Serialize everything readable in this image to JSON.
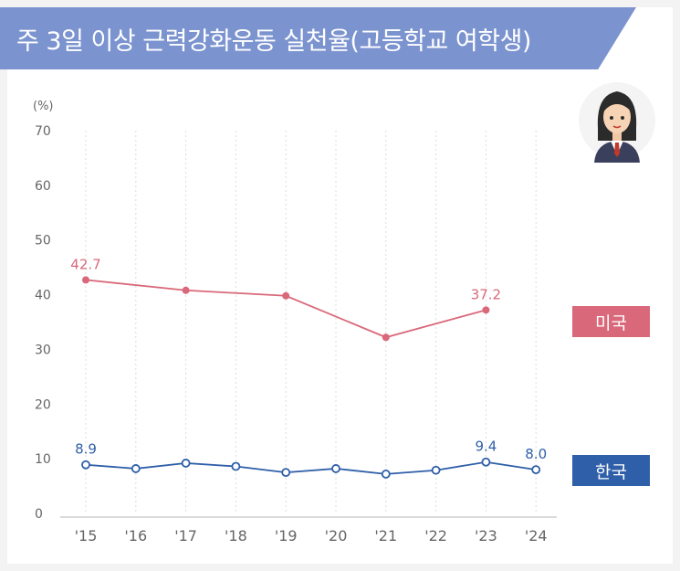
{
  "title": "주 3일 이상 근력강화운동 실천율(고등학교 여학생)",
  "colors": {
    "banner": "#7b93cf",
    "us": "#d9697a",
    "kr": "#2f5fa8",
    "grid": "#dcdcdc",
    "text": "#666666"
  },
  "chart_data": {
    "type": "line",
    "unit_label": "(%)",
    "categories": [
      "'15",
      "'16",
      "'17",
      "'18",
      "'19",
      "'20",
      "'21",
      "'22",
      "'23",
      "'24"
    ],
    "ylim": [
      0,
      70
    ],
    "yticks": [
      0,
      10,
      20,
      30,
      40,
      50,
      60,
      70
    ],
    "grid": "vertical dotted",
    "series": [
      {
        "name": "미국",
        "color": "#d9697a",
        "values": [
          42.7,
          null,
          40.8,
          null,
          39.8,
          null,
          32.2,
          null,
          37.2,
          null
        ],
        "data_labels": [
          "42.7",
          null,
          null,
          null,
          null,
          null,
          null,
          null,
          "37.2",
          null
        ],
        "marker": "filled"
      },
      {
        "name": "한국",
        "color": "#2f5fa8",
        "values": [
          8.9,
          8.2,
          9.2,
          8.6,
          7.5,
          8.2,
          7.2,
          7.9,
          9.4,
          8.0
        ],
        "data_labels": [
          "8.9",
          null,
          null,
          null,
          null,
          null,
          null,
          null,
          "9.4",
          "8.0"
        ],
        "marker": "hollow"
      }
    ]
  },
  "legend": {
    "us_label": "미국",
    "kr_label": "한국"
  }
}
